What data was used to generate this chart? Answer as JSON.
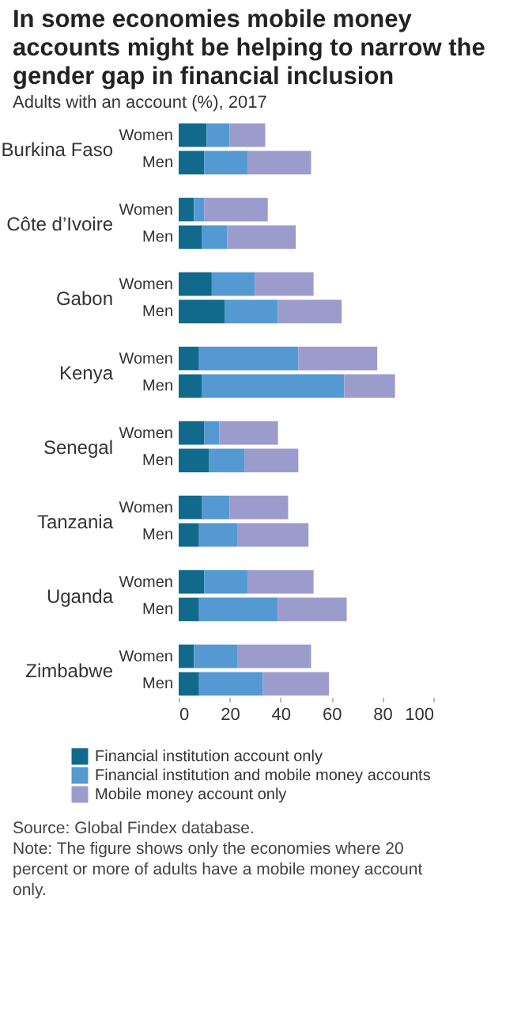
{
  "chart_data": [
    {
      "type": "bar",
      "orientation": "horizontal",
      "stacked": true,
      "title": "In some economies mobile money accounts might be helping to narrow the gender gap in financial inclusion",
      "subtitle": "Adults with an account (%), 2017",
      "ylabel": "Burkina Faso",
      "categories": [
        "Women",
        "Men"
      ],
      "xlim": [
        0,
        100
      ],
      "tick_labels": "y",
      "series": [
        {
          "color": "#11698c",
          "values": [
            11,
            10
          ]
        },
        {
          "color": "#5599d2",
          "values": [
            9,
            17
          ]
        },
        {
          "color": "#9c9ccc",
          "values": [
            14,
            25
          ]
        }
      ]
    },
    {
      "type": "bar",
      "orientation": "horizontal",
      "stacked": true,
      "ylabel": "Côte d’Ivoire",
      "categories": [
        "Women",
        "Men"
      ],
      "xlim": [
        0,
        100
      ],
      "tick_labels": "y",
      "series": [
        {
          "color": "#11698c",
          "values": [
            6,
            9
          ]
        },
        {
          "color": "#5599d2",
          "values": [
            4,
            10
          ]
        },
        {
          "color": "#9c9ccc",
          "values": [
            25,
            27
          ]
        }
      ]
    },
    {
      "type": "bar",
      "orientation": "horizontal",
      "stacked": true,
      "ylabel": "Gabon",
      "categories": [
        "Women",
        "Men"
      ],
      "xlim": [
        0,
        100
      ],
      "tick_labels": "y",
      "series": [
        {
          "color": "#11698c",
          "values": [
            13,
            18
          ]
        },
        {
          "color": "#5599d2",
          "values": [
            17,
            21
          ]
        },
        {
          "color": "#9c9ccc",
          "values": [
            23,
            25
          ]
        }
      ]
    },
    {
      "type": "bar",
      "orientation": "horizontal",
      "stacked": true,
      "ylabel": "Kenya",
      "categories": [
        "Women",
        "Men"
      ],
      "xlim": [
        0,
        100
      ],
      "tick_labels": "y",
      "series": [
        {
          "color": "#11698c",
          "values": [
            8,
            9
          ]
        },
        {
          "color": "#5599d2",
          "values": [
            39,
            56
          ]
        },
        {
          "color": "#9c9ccc",
          "values": [
            31,
            20
          ]
        }
      ]
    },
    {
      "type": "bar",
      "orientation": "horizontal",
      "stacked": true,
      "ylabel": "Senegal",
      "categories": [
        "Women",
        "Men"
      ],
      "xlim": [
        0,
        100
      ],
      "tick_labels": "y",
      "series": [
        {
          "color": "#11698c",
          "values": [
            10,
            12
          ]
        },
        {
          "color": "#5599d2",
          "values": [
            6,
            14
          ]
        },
        {
          "color": "#9c9ccc",
          "values": [
            23,
            21
          ]
        }
      ]
    },
    {
      "type": "bar",
      "orientation": "horizontal",
      "stacked": true,
      "ylabel": "Tanzania",
      "categories": [
        "Women",
        "Men"
      ],
      "xlim": [
        0,
        100
      ],
      "tick_labels": "y",
      "series": [
        {
          "color": "#11698c",
          "values": [
            9,
            8
          ]
        },
        {
          "color": "#5599d2",
          "values": [
            11,
            15
          ]
        },
        {
          "color": "#9c9ccc",
          "values": [
            23,
            28
          ]
        }
      ]
    },
    {
      "type": "bar",
      "orientation": "horizontal",
      "stacked": true,
      "ylabel": "Uganda",
      "categories": [
        "Women",
        "Men"
      ],
      "xlim": [
        0,
        100
      ],
      "tick_labels": "y",
      "series": [
        {
          "color": "#11698c",
          "values": [
            10,
            8
          ]
        },
        {
          "color": "#5599d2",
          "values": [
            17,
            31
          ]
        },
        {
          "color": "#9c9ccc",
          "values": [
            26,
            27
          ]
        }
      ]
    },
    {
      "type": "bar",
      "orientation": "horizontal",
      "stacked": true,
      "ylabel": "Zimbabwe",
      "categories": [
        "Women",
        "Men"
      ],
      "xlim": [
        0,
        100
      ],
      "xticks": [
        0,
        20,
        40,
        60,
        80,
        100
      ],
      "legend": "bottom",
      "annotations": [
        "Source: Global Findex database.",
        "Note: The figure shows only the economies where 20 percent or more of adults have a mobile money account only."
      ],
      "series": [
        {
          "name": "Financial institution account only",
          "color": "#11698c",
          "values": [
            6,
            8
          ]
        },
        {
          "name": "Financial institution and mobile money accounts",
          "color": "#5599d2",
          "values": [
            17,
            25
          ]
        },
        {
          "name": "Mobile money account only",
          "color": "#9c9ccc",
          "values": [
            29,
            26
          ]
        }
      ]
    }
  ]
}
